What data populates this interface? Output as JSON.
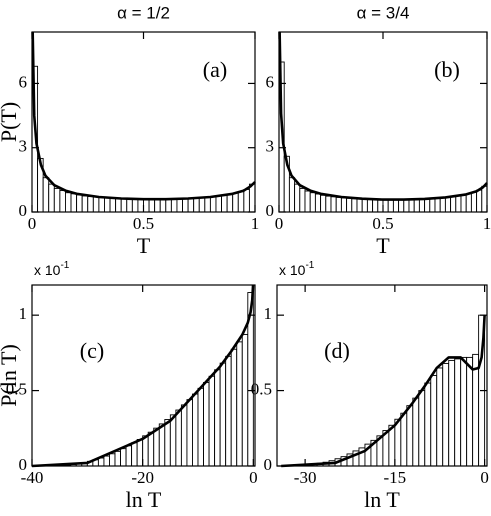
{
  "chart_data": [
    {
      "type": "histogram",
      "title": "α = 1/2",
      "label": "(a)",
      "xlabel": "T",
      "ylabel": "P(T)",
      "xlim": [
        0,
        1
      ],
      "ylim": [
        0,
        8.4
      ],
      "xticks": [
        0,
        0.5,
        1
      ],
      "yticks": [
        0,
        3,
        6
      ],
      "bins": [
        0,
        0.025,
        0.05,
        0.075,
        0.1,
        0.125,
        0.15,
        0.175,
        0.2,
        0.225,
        0.25,
        0.275,
        0.3,
        0.325,
        0.35,
        0.375,
        0.4,
        0.425,
        0.45,
        0.475,
        0.5,
        0.525,
        0.55,
        0.575,
        0.6,
        0.625,
        0.65,
        0.675,
        0.7,
        0.725,
        0.75,
        0.775,
        0.8,
        0.825,
        0.85,
        0.875,
        0.9,
        0.925,
        0.95,
        0.975,
        1
      ],
      "values": [
        6.8,
        2.5,
        1.6,
        1.3,
        1.1,
        1.0,
        0.9,
        0.85,
        0.8,
        0.75,
        0.72,
        0.7,
        0.68,
        0.66,
        0.64,
        0.63,
        0.62,
        0.61,
        0.6,
        0.6,
        0.6,
        0.6,
        0.6,
        0.6,
        0.61,
        0.62,
        0.63,
        0.64,
        0.65,
        0.66,
        0.68,
        0.7,
        0.72,
        0.75,
        0.78,
        0.82,
        0.88,
        0.95,
        1.05,
        1.3
      ],
      "curve": {
        "x": [
          0.003,
          0.01,
          0.02,
          0.04,
          0.06,
          0.1,
          0.15,
          0.2,
          0.3,
          0.4,
          0.5,
          0.6,
          0.7,
          0.8,
          0.9,
          0.95,
          0.98,
          1.0
        ],
        "values": [
          8.4,
          4.5,
          3.2,
          2.2,
          1.7,
          1.25,
          1.0,
          0.85,
          0.7,
          0.63,
          0.6,
          0.6,
          0.63,
          0.7,
          0.85,
          1.0,
          1.2,
          1.4
        ]
      }
    },
    {
      "type": "histogram",
      "title": "α = 3/4",
      "label": "(b)",
      "xlabel": "T",
      "xlim": [
        0,
        1
      ],
      "ylim": [
        0,
        8.4
      ],
      "xticks": [
        0,
        0.5,
        1
      ],
      "yticks": [
        0,
        3,
        6
      ],
      "bins": [
        0,
        0.025,
        0.05,
        0.075,
        0.1,
        0.125,
        0.15,
        0.175,
        0.2,
        0.225,
        0.25,
        0.275,
        0.3,
        0.325,
        0.35,
        0.375,
        0.4,
        0.425,
        0.45,
        0.475,
        0.5,
        0.525,
        0.55,
        0.575,
        0.6,
        0.625,
        0.65,
        0.675,
        0.7,
        0.725,
        0.75,
        0.775,
        0.8,
        0.825,
        0.85,
        0.875,
        0.9,
        0.925,
        0.95,
        0.975,
        1
      ],
      "values": [
        7.0,
        2.6,
        1.6,
        1.3,
        1.1,
        0.98,
        0.9,
        0.84,
        0.78,
        0.74,
        0.71,
        0.68,
        0.66,
        0.64,
        0.62,
        0.61,
        0.6,
        0.59,
        0.58,
        0.58,
        0.58,
        0.58,
        0.58,
        0.58,
        0.59,
        0.6,
        0.61,
        0.62,
        0.63,
        0.64,
        0.66,
        0.68,
        0.7,
        0.72,
        0.75,
        0.79,
        0.85,
        0.92,
        1.02,
        1.2
      ],
      "curve": {
        "x": [
          0.003,
          0.01,
          0.02,
          0.04,
          0.06,
          0.1,
          0.15,
          0.2,
          0.3,
          0.4,
          0.5,
          0.6,
          0.7,
          0.8,
          0.9,
          0.95,
          0.98,
          1.0
        ],
        "values": [
          8.4,
          4.6,
          3.2,
          2.2,
          1.7,
          1.25,
          1.0,
          0.85,
          0.7,
          0.62,
          0.58,
          0.58,
          0.61,
          0.68,
          0.82,
          0.97,
          1.15,
          1.35
        ]
      }
    },
    {
      "type": "histogram",
      "label": "(c)",
      "xlabel": "ln T",
      "ylabel": "P(ln T)",
      "scale_label": "x 10",
      "scale_exponent": "-1",
      "xlim": [
        -40,
        0.3
      ],
      "ylim": [
        0,
        1.2
      ],
      "xticks": [
        -40,
        -20,
        0
      ],
      "yticks": [
        0,
        0.5,
        1
      ],
      "bins": [
        -36,
        -35,
        -34,
        -33,
        -32,
        -31,
        -30,
        -29,
        -28,
        -27,
        -26,
        -25,
        -24,
        -23,
        -22,
        -21,
        -20,
        -19,
        -18,
        -17,
        -16,
        -15,
        -14,
        -13,
        -12,
        -11,
        -10,
        -9,
        -8,
        -7,
        -6,
        -5,
        -4,
        -3,
        -2,
        -1,
        0
      ],
      "values": [
        0,
        0.002,
        0.005,
        0.009,
        0.015,
        0.022,
        0.031,
        0.041,
        0.053,
        0.066,
        0.081,
        0.097,
        0.115,
        0.134,
        0.154,
        0.176,
        0.2,
        0.224,
        0.251,
        0.279,
        0.308,
        0.339,
        0.371,
        0.405,
        0.44,
        0.477,
        0.515,
        0.554,
        0.595,
        0.638,
        0.682,
        0.727,
        0.774,
        0.823,
        0.872,
        1.15
      ],
      "curve": {
        "x": [
          -40,
          -30,
          -20,
          -15,
          -10,
          -6,
          -4,
          -2,
          -1,
          -0.5,
          -0.2,
          -0.05
        ],
        "values": [
          0,
          0.02,
          0.18,
          0.3,
          0.5,
          0.66,
          0.76,
          0.87,
          0.95,
          1.02,
          1.1,
          1.2
        ]
      }
    },
    {
      "type": "histogram",
      "label": "(d)",
      "xlabel": "ln T",
      "scale_label": "x 10",
      "scale_exponent": "-1",
      "xlim": [
        -34.7,
        0.4
      ],
      "ylim": [
        0,
        1.2
      ],
      "xticks": [
        -30,
        -15,
        0
      ],
      "yticks": [
        0,
        0.5,
        1
      ],
      "bins": [
        -34,
        -33,
        -32,
        -31,
        -30,
        -29,
        -28,
        -27,
        -26,
        -25,
        -24,
        -23,
        -22,
        -21,
        -20,
        -19,
        -18,
        -17,
        -16,
        -15,
        -14,
        -13,
        -12,
        -11,
        -10,
        -9,
        -8,
        -7,
        -6,
        -5,
        -4,
        -3,
        -2,
        -1,
        0
      ],
      "values": [
        0,
        0,
        0,
        0.005,
        0.008,
        0.012,
        0.018,
        0.025,
        0.035,
        0.048,
        0.062,
        0.08,
        0.1,
        0.12,
        0.145,
        0.17,
        0.2,
        0.235,
        0.27,
        0.31,
        0.35,
        0.4,
        0.45,
        0.5,
        0.55,
        0.6,
        0.65,
        0.68,
        0.7,
        0.71,
        0.72,
        0.72,
        0.74,
        1.0
      ],
      "curve": {
        "x": [
          -34,
          -25,
          -20,
          -15,
          -12,
          -10,
          -8,
          -6,
          -4,
          -3,
          -2,
          -1,
          -0.5,
          -0.2,
          0
        ],
        "values": [
          0,
          0.02,
          0.1,
          0.27,
          0.42,
          0.53,
          0.65,
          0.72,
          0.72,
          0.68,
          0.64,
          0.65,
          0.72,
          0.85,
          1.0
        ]
      }
    }
  ]
}
